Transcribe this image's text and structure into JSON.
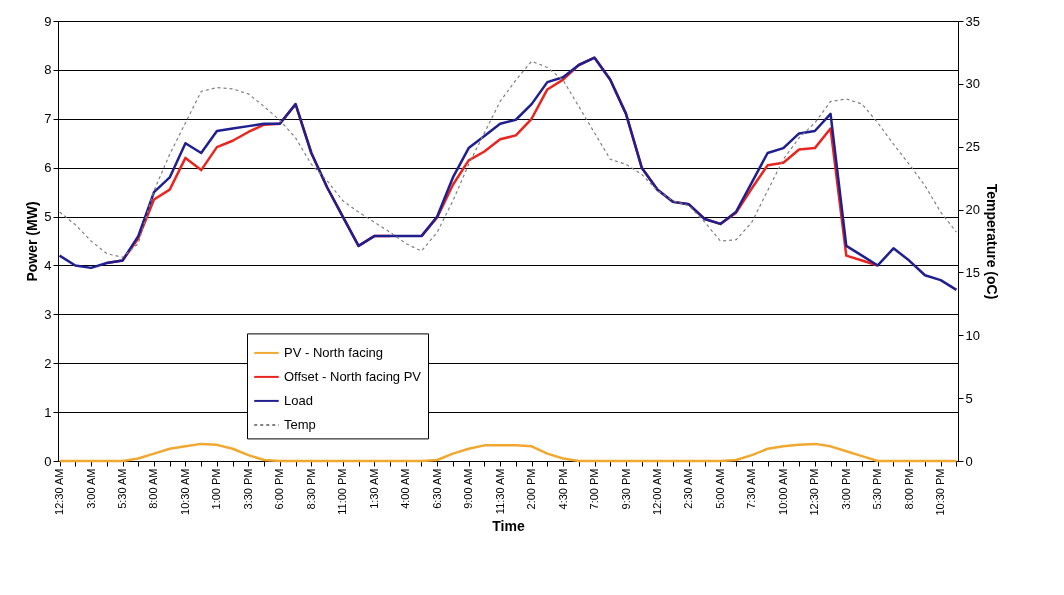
{
  "chart_data": {
    "type": "line",
    "xlabel": "Time",
    "ylabel": "Power (MW)",
    "y2label": "Temperature (oC)",
    "categories": [
      "12:30 AM",
      null,
      "3:00 AM",
      null,
      "5:30 AM",
      null,
      "8:00 AM",
      null,
      "10:30 AM",
      null,
      "1:00 PM",
      null,
      "3:30 PM",
      null,
      "6:00 PM",
      null,
      "8:30 PM",
      null,
      "11:00 PM",
      null,
      "1:30 AM",
      null,
      "4:00 AM",
      null,
      "6:30 AM",
      null,
      "9:00 AM",
      null,
      "11:30 AM",
      null,
      "2:00 PM",
      null,
      "4:30 PM",
      null,
      "7:00 PM",
      null,
      "9:30 PM",
      null,
      "12:00 AM",
      null,
      "2:30 AM",
      null,
      "5:00 AM",
      null,
      "7:30 AM",
      null,
      "10:00 AM",
      null,
      "12:30 PM",
      null,
      "3:00 PM",
      null,
      "5:30 PM",
      null,
      "8:00 PM",
      null,
      "10:30 PM",
      null
    ],
    "series": [
      {
        "name": "PV - North facing",
        "color": "#f0a830",
        "values": [
          0,
          0,
          0,
          0,
          0,
          0.05,
          0.15,
          0.25,
          0.3,
          0.35,
          0.33,
          0.25,
          0.12,
          0.02,
          0,
          0,
          0,
          0,
          0,
          0,
          0,
          0,
          0,
          0,
          0.02,
          0.15,
          0.25,
          0.32,
          0.32,
          0.32,
          0.3,
          0.15,
          0.05,
          0,
          0,
          0,
          0,
          0,
          0,
          0,
          0,
          0,
          0,
          0.02,
          0.12,
          0.25,
          0.3,
          0.33,
          0.35,
          0.3,
          0.2,
          0.1,
          0,
          0,
          0,
          0,
          0,
          0
        ]
      },
      {
        "name": "Offset - North facing PV",
        "color": "#e8251f",
        "values": [
          null,
          null,
          null,
          4.05,
          4.1,
          4.55,
          5.35,
          5.55,
          6.2,
          5.95,
          6.42,
          6.55,
          6.73,
          6.88,
          6.9,
          7.3,
          6.3,
          5.6,
          5.0,
          4.4,
          4.6,
          4.6,
          null,
          4.6,
          4.98,
          5.65,
          6.15,
          6.33,
          6.58,
          6.66,
          7.0,
          7.6,
          7.8,
          8.1,
          8.25,
          7.8,
          7.1,
          6.0,
          5.55,
          5.3,
          5.25,
          4.95,
          4.85,
          5.08,
          5.58,
          6.05,
          6.1,
          6.37,
          6.4,
          6.8,
          4.2,
          4.1,
          4.0,
          null,
          null,
          null,
          null,
          null
        ]
      },
      {
        "name": "Load",
        "color": "#1f1f8f",
        "values": [
          4.2,
          4.0,
          3.95,
          4.05,
          4.1,
          4.6,
          5.5,
          5.8,
          6.5,
          6.3,
          6.75,
          6.8,
          6.85,
          6.9,
          6.9,
          7.3,
          6.3,
          5.6,
          5.0,
          4.4,
          4.6,
          4.6,
          4.6,
          4.6,
          5.0,
          5.8,
          6.4,
          6.65,
          6.9,
          6.98,
          7.3,
          7.75,
          7.85,
          8.1,
          8.25,
          7.8,
          7.1,
          6.0,
          5.55,
          5.3,
          5.25,
          4.95,
          4.85,
          5.1,
          5.7,
          6.3,
          6.4,
          6.7,
          6.75,
          7.1,
          4.4,
          4.2,
          4.0,
          4.35,
          4.1,
          3.8,
          3.7,
          3.5
        ]
      },
      {
        "name": "Temp",
        "color": "#808080",
        "axis": "y2",
        "line_style": "dashed",
        "values": [
          19.8,
          18.8,
          17.5,
          16.5,
          16.2,
          17.3,
          21.5,
          24.4,
          26.9,
          29.4,
          29.7,
          29.6,
          29.2,
          28.2,
          27.1,
          25.7,
          23.6,
          22.3,
          20.7,
          19.8,
          19.0,
          18.2,
          17.3,
          16.7,
          18.2,
          20.7,
          23.6,
          26.1,
          28.6,
          30.3,
          31.8,
          31.3,
          30.3,
          28.2,
          26.1,
          24.0,
          23.6,
          22.8,
          21.5,
          20.7,
          20.3,
          19.0,
          17.5,
          17.6,
          19.0,
          21.5,
          24.0,
          25.7,
          26.9,
          28.6,
          28.8,
          28.4,
          26.9,
          25.2,
          23.6,
          21.9,
          19.8,
          18.2
        ]
      }
    ],
    "ylim": [
      0,
      9
    ],
    "yticks": [
      0,
      1,
      2,
      3,
      4,
      5,
      6,
      7,
      8,
      9
    ],
    "y2lim": [
      0,
      35
    ],
    "y2ticks": [
      0,
      5,
      10,
      15,
      20,
      25,
      30,
      35
    ],
    "grid": "y",
    "legend": "center",
    "line_style": "solid"
  }
}
